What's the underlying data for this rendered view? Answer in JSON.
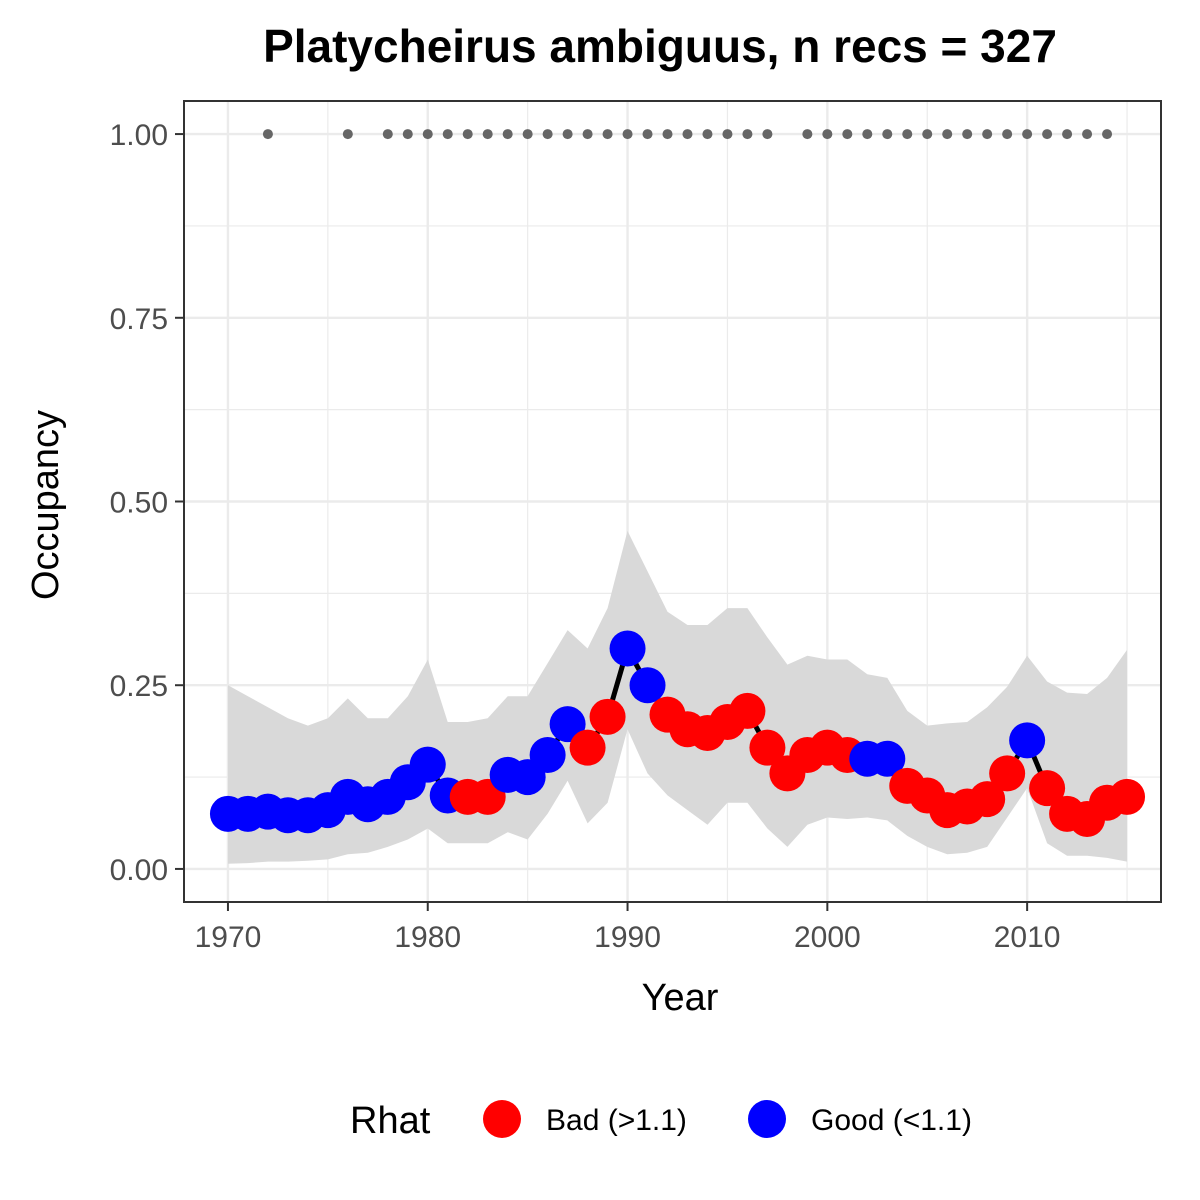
{
  "chart_data": {
    "type": "line",
    "title": "Platycheirus ambiguus, n recs = 327",
    "xlabel": "Year",
    "ylabel": "Occupancy",
    "xlim": [
      1967.8,
      2016.7
    ],
    "ylim": [
      -0.045,
      1.045
    ],
    "x_ticks": [
      1970,
      1980,
      1990,
      2000,
      2010
    ],
    "y_ticks": [
      0.0,
      0.25,
      0.5,
      0.75,
      1.0
    ],
    "y_tick_labels": [
      "0.00",
      "0.25",
      "0.50",
      "0.75",
      "1.00"
    ],
    "grid": true,
    "legend": {
      "title": "Rhat",
      "position": "bottom",
      "entries": [
        {
          "key": "bad",
          "label": "Bad (>1.1)",
          "color": "#ff0000"
        },
        {
          "key": "good",
          "label": "Good (<1.1)",
          "color": "#0000ff"
        }
      ]
    },
    "colors": {
      "line": "#000000",
      "ribbon": "#d9d9d9",
      "record_dots": "#666666",
      "grid": "#ebebeb",
      "panel_border": "#333333"
    },
    "series": [
      {
        "x": [
          1970,
          1971,
          1972,
          1973,
          1974,
          1975,
          1976,
          1977,
          1978,
          1979,
          1980,
          1981,
          1982,
          1983,
          1984,
          1985,
          1986,
          1987,
          1988,
          1989,
          1990,
          1991,
          1992,
          1993,
          1994,
          1995,
          1996,
          1997,
          1998,
          1999,
          2000,
          2001,
          2002,
          2003,
          2004,
          2005,
          2006,
          2007,
          2008,
          2009,
          2010,
          2011,
          2012,
          2013,
          2014,
          2015
        ],
        "y": [
          0.075,
          0.075,
          0.078,
          0.073,
          0.073,
          0.08,
          0.098,
          0.088,
          0.098,
          0.118,
          0.142,
          0.1,
          0.098,
          0.098,
          0.128,
          0.125,
          0.155,
          0.197,
          0.165,
          0.207,
          0.3,
          0.25,
          0.21,
          0.19,
          0.185,
          0.2,
          0.215,
          0.165,
          0.13,
          0.155,
          0.165,
          0.155,
          0.15,
          0.15,
          0.113,
          0.1,
          0.08,
          0.085,
          0.095,
          0.13,
          0.175,
          0.11,
          0.075,
          0.068,
          0.09,
          0.098
        ],
        "lower": [
          0.007,
          0.008,
          0.01,
          0.01,
          0.011,
          0.013,
          0.02,
          0.022,
          0.03,
          0.04,
          0.055,
          0.035,
          0.035,
          0.035,
          0.05,
          0.04,
          0.075,
          0.12,
          0.062,
          0.09,
          0.19,
          0.13,
          0.1,
          0.08,
          0.06,
          0.09,
          0.09,
          0.055,
          0.03,
          0.06,
          0.07,
          0.068,
          0.07,
          0.066,
          0.045,
          0.03,
          0.02,
          0.022,
          0.03,
          0.07,
          0.11,
          0.035,
          0.018,
          0.018,
          0.015,
          0.01
        ],
        "upper": [
          0.25,
          0.235,
          0.22,
          0.205,
          0.195,
          0.205,
          0.232,
          0.205,
          0.205,
          0.235,
          0.285,
          0.2,
          0.2,
          0.205,
          0.235,
          0.235,
          0.28,
          0.325,
          0.3,
          0.355,
          0.46,
          0.405,
          0.35,
          0.332,
          0.332,
          0.355,
          0.355,
          0.315,
          0.278,
          0.29,
          0.285,
          0.285,
          0.265,
          0.26,
          0.215,
          0.195,
          0.198,
          0.2,
          0.22,
          0.248,
          0.29,
          0.255,
          0.24,
          0.238,
          0.26,
          0.298
        ],
        "rhat": [
          "good",
          "good",
          "good",
          "good",
          "good",
          "good",
          "good",
          "good",
          "good",
          "good",
          "good",
          "good",
          "bad",
          "bad",
          "good",
          "good",
          "good",
          "good",
          "bad",
          "bad",
          "good",
          "good",
          "bad",
          "bad",
          "bad",
          "bad",
          "bad",
          "bad",
          "bad",
          "bad",
          "bad",
          "bad",
          "good",
          "good",
          "bad",
          "bad",
          "bad",
          "bad",
          "bad",
          "bad",
          "good",
          "bad",
          "bad",
          "bad",
          "bad",
          "bad"
        ]
      }
    ],
    "record_years": [
      1972,
      1976,
      1978,
      1979,
      1980,
      1981,
      1982,
      1983,
      1984,
      1985,
      1986,
      1987,
      1988,
      1989,
      1990,
      1991,
      1992,
      1993,
      1994,
      1995,
      1996,
      1997,
      1999,
      2000,
      2001,
      2002,
      2003,
      2004,
      2005,
      2006,
      2007,
      2008,
      2009,
      2010,
      2011,
      2012,
      2013,
      2014
    ]
  }
}
